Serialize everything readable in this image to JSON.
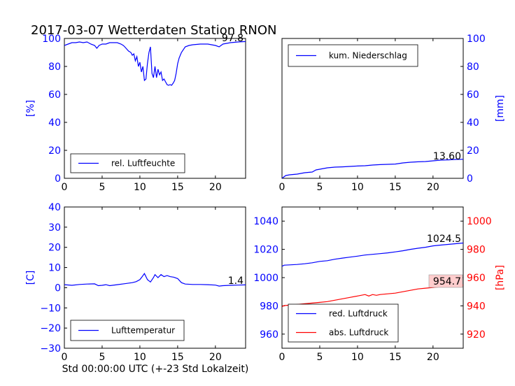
{
  "figure": {
    "title": "2017-03-07 Wetterdaten Station RNON",
    "xlabel": "Std 00:00:00 UTC (+-23 Std Lokalzeit)"
  },
  "colors": {
    "blue": "#0000ff",
    "red": "#ff0000",
    "black": "#000000",
    "annot_bg": "#ffcccc"
  },
  "chart_data": [
    {
      "type": "line",
      "name": "humidity",
      "xlim": [
        0,
        24
      ],
      "ylim": [
        0,
        100
      ],
      "xticks": [
        0,
        5,
        10,
        15,
        20
      ],
      "yticks": [
        0,
        20,
        40,
        60,
        80,
        100
      ],
      "ylabel": "[%]",
      "legend": "bottom-left",
      "last_value_label": "97.8",
      "series": [
        {
          "name": "rel. Luftfeuchte",
          "color": "#0000ff",
          "x": [
            0,
            0.5,
            1,
            1.5,
            2,
            2.5,
            3,
            3.5,
            4,
            4.3,
            4.6,
            5,
            5.5,
            6,
            6.5,
            7,
            7.5,
            7.8,
            8,
            8.5,
            8.8,
            9,
            9.2,
            9.4,
            9.6,
            9.8,
            10,
            10.2,
            10.4,
            10.6,
            10.8,
            11,
            11.2,
            11.4,
            11.6,
            11.8,
            12,
            12.2,
            12.4,
            12.6,
            12.8,
            13,
            13.2,
            13.4,
            13.6,
            13.8,
            14,
            14.2,
            14.4,
            14.6,
            14.8,
            15,
            15.2,
            15.5,
            16,
            16.5,
            17,
            18,
            19,
            20,
            20.5,
            21,
            22,
            23,
            24
          ],
          "y": [
            95,
            96,
            97,
            97,
            97.5,
            97,
            97.5,
            96,
            95,
            93,
            95,
            96,
            96,
            97,
            97,
            97,
            96,
            95,
            94,
            91,
            90,
            88,
            89,
            84,
            87,
            80,
            83,
            76,
            80,
            70,
            71,
            82,
            90,
            94,
            75,
            72,
            80,
            72,
            78,
            74,
            76,
            70,
            71,
            69,
            67,
            66.5,
            67,
            66.5,
            68,
            70,
            75,
            82,
            86,
            90,
            94,
            95,
            95.5,
            96,
            96,
            95,
            94,
            96,
            97,
            97.5,
            97.8
          ]
        }
      ]
    },
    {
      "type": "line",
      "name": "precipitation",
      "xlim": [
        0,
        24
      ],
      "ylim": [
        0,
        100
      ],
      "xticks": [
        0,
        5,
        10,
        15,
        20
      ],
      "yticks": [
        0,
        20,
        40,
        60,
        80,
        100
      ],
      "ylabel": "[mm]",
      "legend": "top-left",
      "last_value_label": "13.60",
      "series": [
        {
          "name": "kum. Niederschlag",
          "color": "#0000ff",
          "x": [
            0,
            0.5,
            1,
            2,
            3,
            4,
            4.5,
            5,
            6,
            7,
            8,
            9,
            10,
            11,
            12,
            13,
            14,
            15,
            16,
            17,
            18,
            19,
            20,
            21,
            22,
            23,
            24
          ],
          "y": [
            0,
            2,
            2.5,
            3,
            4,
            4.5,
            6,
            6.5,
            7.5,
            8,
            8.2,
            8.5,
            8.8,
            9,
            9.5,
            9.8,
            10,
            10.2,
            11,
            11.5,
            11.8,
            12,
            12.5,
            13,
            13.2,
            13.5,
            13.6
          ]
        }
      ]
    },
    {
      "type": "line",
      "name": "temperature",
      "xlim": [
        0,
        24
      ],
      "ylim": [
        -30,
        40
      ],
      "xticks": [
        0,
        5,
        10,
        15,
        20
      ],
      "yticks": [
        -30,
        -20,
        -10,
        0,
        10,
        20,
        30,
        40
      ],
      "ylabel": "[C]",
      "legend": "bottom-left",
      "last_value_label": "1.4",
      "series": [
        {
          "name": "Lufttemperatur",
          "color": "#0000ff",
          "x": [
            0,
            1,
            2,
            3,
            4,
            4.5,
            5,
            5.5,
            6,
            7,
            8,
            9,
            9.5,
            10,
            10.3,
            10.6,
            11,
            11.4,
            11.8,
            12,
            12.4,
            12.8,
            13.2,
            13.6,
            14,
            14.5,
            15,
            15.5,
            16,
            17,
            18,
            19,
            20,
            20.5,
            21,
            22,
            23,
            24
          ],
          "y": [
            1.5,
            1.2,
            1.6,
            1.8,
            1.9,
            1,
            1.2,
            1.5,
            1,
            1.5,
            2,
            2.5,
            3,
            4,
            5.5,
            7,
            4,
            2.8,
            5,
            6.5,
            5,
            6.5,
            5.5,
            6,
            5.5,
            5.2,
            4.5,
            2.5,
            1.8,
            1.6,
            1.6,
            1.5,
            1.3,
            0.8,
            1,
            1.2,
            1.3,
            1.4
          ]
        }
      ]
    },
    {
      "type": "line",
      "name": "pressure",
      "xlim": [
        0,
        24
      ],
      "ylim": [
        950,
        1050
      ],
      "ylim_right": [
        910,
        1010
      ],
      "xticks": [
        0,
        5,
        10,
        15,
        20
      ],
      "yticks": [
        960,
        980,
        1000,
        1020,
        1040
      ],
      "yticks_right": [
        920,
        940,
        960,
        980,
        1000
      ],
      "ylabel_right": "[hPa]",
      "legend": "bottom-left",
      "last_value_label": "1024.5",
      "last_value_label_right": "954.7",
      "series": [
        {
          "name": "red. Luftdruck",
          "color": "#0000ff",
          "axis": "left",
          "x": [
            0,
            0.3,
            1,
            2,
            3,
            4,
            5,
            6,
            7,
            8,
            9,
            10,
            11,
            12,
            13,
            14,
            15,
            16,
            17,
            18,
            19,
            20,
            21,
            22,
            23,
            24
          ],
          "y": [
            1008,
            1008.8,
            1009,
            1009.3,
            1009.8,
            1010.5,
            1011.5,
            1012,
            1013,
            1013.8,
            1014.5,
            1015.2,
            1016,
            1016.5,
            1017,
            1017.5,
            1018.2,
            1019,
            1020,
            1020.8,
            1021.5,
            1022.5,
            1023,
            1023.5,
            1024,
            1024.5
          ]
        },
        {
          "name": "abs. Luftdruck",
          "color": "#ff0000",
          "axis": "right",
          "x": [
            0,
            0.3,
            1,
            2,
            3,
            4,
            5,
            6,
            7,
            8,
            9,
            10,
            11,
            11.5,
            12,
            12.5,
            13,
            14,
            15,
            16,
            17,
            18,
            19,
            20,
            21,
            22,
            23,
            24
          ],
          "y": [
            939.5,
            940.2,
            940.5,
            941,
            941.5,
            942,
            942.5,
            943,
            944,
            945,
            946,
            947,
            948,
            947,
            948,
            947.5,
            948,
            948.5,
            949,
            950,
            951,
            952,
            952.5,
            953,
            953.5,
            954,
            954.3,
            954.7
          ]
        }
      ]
    }
  ]
}
